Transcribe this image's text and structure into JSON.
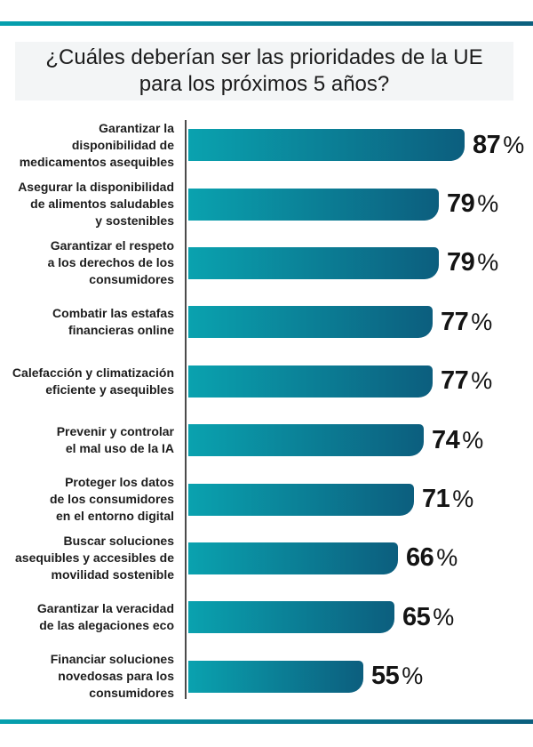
{
  "title": "¿Cuáles deberían ser las prioridades de la UE\npara los próximos 5 años?",
  "colors": {
    "bar_gradient_start": "#0AA2AF",
    "bar_gradient_end": "#0C5E7E",
    "divider_gradient_start": "#05A0AE",
    "divider_gradient_end": "#0B5F7E",
    "axis_line": "#4b4b4b",
    "text": "#1d1d1d",
    "title_background": "#f3f5f6"
  },
  "chart_data": {
    "type": "bar",
    "orientation": "horizontal",
    "title": "¿Cuáles deberían ser las prioridades de la UE para los próximos 5 años?",
    "value_suffix": "%",
    "xlim": [
      0,
      100
    ],
    "grid": false,
    "legend": false,
    "categories": [
      "Garantizar la\ndisponibilidad de\nmedicamentos asequibles",
      "Asegurar la disponibilidad\nde alimentos saludables\ny sostenibles",
      "Garantizar el respeto\na los derechos de los\nconsumidores",
      "Combatir las estafas\nfinancieras online",
      "Calefacción y climatización\neficiente y asequibles",
      "Prevenir y controlar\nel mal uso de la IA",
      "Proteger los datos\nde los consumidores\nen el entorno digital",
      "Buscar soluciones\nasequibles y accesibles de\nmovilidad sostenible",
      "Garantizar la veracidad\nde las alegaciones eco",
      "Financiar soluciones\nnovedosas para los\nconsumidores"
    ],
    "values": [
      87,
      79,
      79,
      77,
      77,
      74,
      71,
      66,
      65,
      55
    ]
  }
}
